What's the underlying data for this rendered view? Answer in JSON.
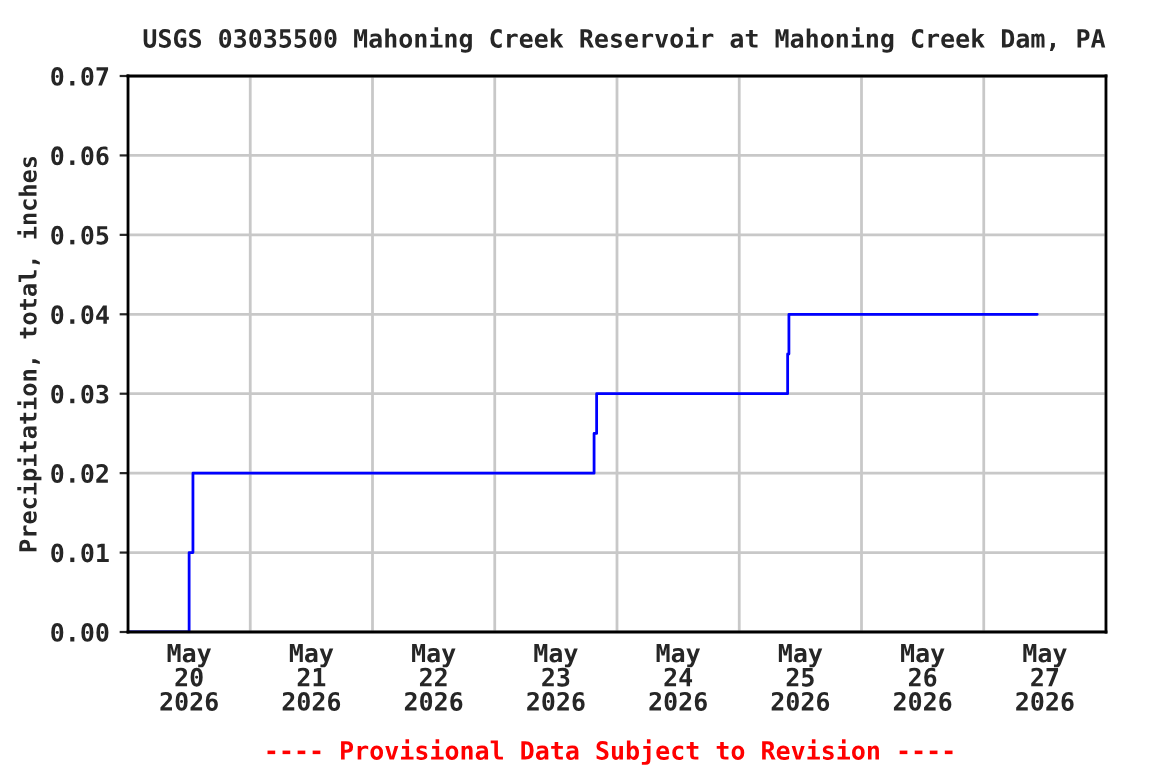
{
  "chart_data": {
    "type": "step",
    "title": "USGS 03035500 Mahoning Creek Reservoir at Mahoning Creek Dam, PA",
    "ylabel": "Precipitation, total, inches",
    "annotations": [
      "---- Provisional Data Subject to Revision ----"
    ],
    "x": [
      "2026-05-20T00:00",
      "2026-05-20T12:00",
      "2026-05-20T12:45",
      "2026-05-23T19:30",
      "2026-05-23T20:00",
      "2026-05-25T09:30",
      "2026-05-25T09:45",
      "2026-05-27T10:30"
    ],
    "series": [
      {
        "color": "#0000ff",
        "values": [
          0.0,
          0.01,
          0.02,
          0.025,
          0.03,
          0.035,
          0.04,
          0.04
        ]
      }
    ],
    "xlim": [
      "2026-05-20T00:00",
      "2026-05-28T00:00"
    ],
    "xticks": [
      {
        "value": "2026-05-20T00:00",
        "label": null
      },
      {
        "value": "2026-05-20T12:00",
        "label": "May\n20\n2026"
      },
      {
        "value": "2026-05-21T00:00",
        "label": null
      },
      {
        "value": "2026-05-21T12:00",
        "label": "May\n21\n2026"
      },
      {
        "value": "2026-05-22T00:00",
        "label": null
      },
      {
        "value": "2026-05-22T12:00",
        "label": "May\n22\n2026"
      },
      {
        "value": "2026-05-23T00:00",
        "label": null
      },
      {
        "value": "2026-05-23T12:00",
        "label": "May\n23\n2026"
      },
      {
        "value": "2026-05-24T00:00",
        "label": null
      },
      {
        "value": "2026-05-24T12:00",
        "label": "May\n24\n2026"
      },
      {
        "value": "2026-05-25T00:00",
        "label": null
      },
      {
        "value": "2026-05-25T12:00",
        "label": "May\n25\n2026"
      },
      {
        "value": "2026-05-26T00:00",
        "label": null
      },
      {
        "value": "2026-05-26T12:00",
        "label": "May\n26\n2026"
      },
      {
        "value": "2026-05-27T00:00",
        "label": null
      },
      {
        "value": "2026-05-27T12:00",
        "label": "May\n27\n2026"
      },
      {
        "value": "2026-05-28T00:00",
        "label": null
      }
    ],
    "ylim": [
      0,
      0.07
    ],
    "yticks": [
      {
        "value": 0,
        "label": "0.00"
      },
      {
        "value": 0.01,
        "label": "0.01"
      },
      {
        "value": 0.02,
        "label": "0.02"
      },
      {
        "value": 0.03,
        "label": "0.03"
      },
      {
        "value": 0.04,
        "label": "0.04"
      },
      {
        "value": 0.05,
        "label": "0.05"
      },
      {
        "value": 0.06,
        "label": "0.06"
      },
      {
        "value": 0.07,
        "label": "0.07"
      }
    ],
    "grid": true,
    "legend": false
  }
}
